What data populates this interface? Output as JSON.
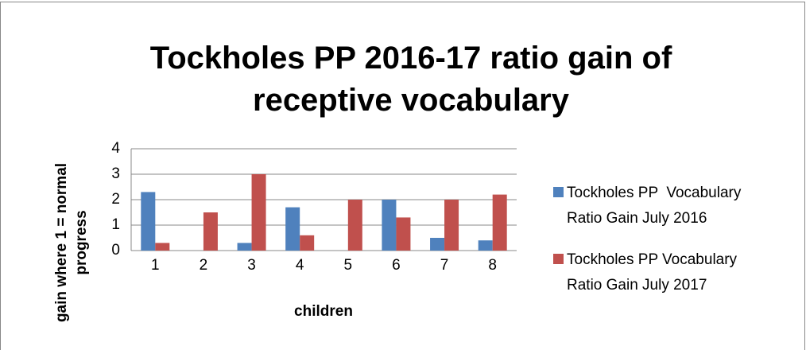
{
  "chart_data": {
    "type": "bar",
    "title": "Tockholes PP 2016-17 ratio gain of receptive vocabulary",
    "x_label": "children",
    "y_label": "gain where 1 = normal progress",
    "categories": [
      1,
      2,
      3,
      4,
      5,
      6,
      7,
      8
    ],
    "series": [
      {
        "name": "Tockholes PP  Vocabulary Ratio Gain July 2016",
        "color": "#4f81bd",
        "values": [
          2.3,
          0,
          0.3,
          1.7,
          0,
          2.0,
          0.5,
          0.4
        ]
      },
      {
        "name": "Tockholes PP Vocabulary Ratio Gain July 2017",
        "color": "#c0504d",
        "values": [
          0.3,
          1.5,
          3.0,
          0.6,
          2.0,
          1.3,
          2.0,
          2.2
        ]
      }
    ],
    "ylim": [
      0,
      4
    ],
    "yticks": [
      0,
      1,
      2,
      3,
      4
    ],
    "grid": true,
    "legend": "right"
  }
}
